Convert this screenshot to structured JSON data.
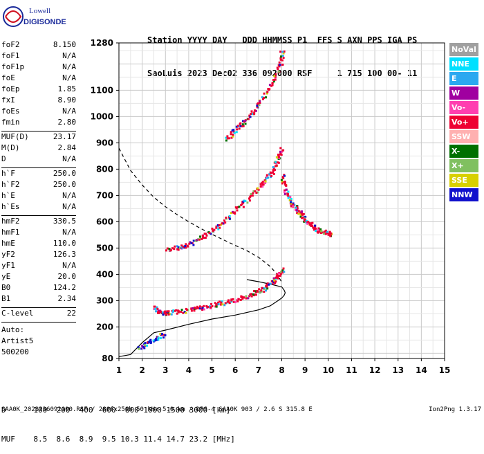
{
  "logo": {
    "line1": "Lowell",
    "line2": "DIGISONDE"
  },
  "header": {
    "labels": [
      "Station",
      "YYYY",
      "DAY",
      "DDD",
      "HHMMSS",
      "P1",
      "FFS",
      "S",
      "AXN",
      "PPS",
      "IGA",
      "PS"
    ],
    "values": [
      "SaoLuis",
      "2023",
      "Dec02",
      "336",
      "092000",
      "RSF",
      "1",
      "715",
      "100",
      "00-",
      "11"
    ]
  },
  "params": [
    {
      "label": "foF2",
      "value": "8.150"
    },
    {
      "label": "foF1",
      "value": "N/A"
    },
    {
      "label": "foF1p",
      "value": "N/A"
    },
    {
      "label": "foE",
      "value": "N/A"
    },
    {
      "label": "foEp",
      "value": "1.85"
    },
    {
      "label": "fxI",
      "value": "8.90"
    },
    {
      "label": "foEs",
      "value": "N/A"
    },
    {
      "label": "fmin",
      "value": "2.80"
    },
    {
      "label": "MUF(D)",
      "value": "23.17"
    },
    {
      "label": "M(D)",
      "value": "2.84"
    },
    {
      "label": "D",
      "value": "N/A"
    },
    {
      "label": "h`F",
      "value": "250.0"
    },
    {
      "label": "h`F2",
      "value": "250.0"
    },
    {
      "label": "h`E",
      "value": "N/A"
    },
    {
      "label": "h`Es",
      "value": "N/A"
    },
    {
      "label": "hmF2",
      "value": "330.5"
    },
    {
      "label": "hmF1",
      "value": "N/A"
    },
    {
      "label": "hmE",
      "value": "110.0"
    },
    {
      "label": "yF2",
      "value": "126.3"
    },
    {
      "label": "yF1",
      "value": "N/A"
    },
    {
      "label": "yE",
      "value": "20.0"
    },
    {
      "label": "B0",
      "value": "124.2"
    },
    {
      "label": "B1",
      "value": "2.34"
    },
    {
      "label": "C-level",
      "value": "22"
    }
  ],
  "auto": {
    "line1": "Auto:",
    "line2": "Artist5",
    "line3": "500200"
  },
  "legend": [
    {
      "label": "NoVal",
      "color": "#a0a0a0"
    },
    {
      "label": "NNE",
      "color": "#00e0ff"
    },
    {
      "label": "E",
      "color": "#2ba8f0"
    },
    {
      "label": "W",
      "color": "#a000a0"
    },
    {
      "label": "Vo-",
      "color": "#ff3fb0"
    },
    {
      "label": "Vo+",
      "color": "#ee0033"
    },
    {
      "label": "SSW",
      "color": "#ffb0b0"
    },
    {
      "label": "X-",
      "color": "#007000"
    },
    {
      "label": "X+",
      "color": "#80c060"
    },
    {
      "label": "SSE",
      "color": "#d8d000"
    },
    {
      "label": "NNW",
      "color": "#1010cc"
    }
  ],
  "chart_data": {
    "type": "scatter",
    "xlim": [
      1,
      15
    ],
    "ylim": [
      80,
      1280
    ],
    "x_ticks": [
      1,
      2,
      3,
      4,
      5,
      6,
      7,
      8,
      9,
      10,
      11,
      12,
      13,
      14,
      15
    ],
    "y_ticks": [
      80,
      200,
      300,
      400,
      500,
      600,
      700,
      800,
      900,
      1000,
      1100,
      1280
    ],
    "grid": true,
    "series": [
      {
        "color": "#000000",
        "style": "solid",
        "x": [
          1.0,
          1.5,
          2.0,
          2.5,
          3.0,
          4.0,
          5.0,
          6.0,
          7.0,
          7.5,
          7.8,
          8.0,
          8.1,
          8.15,
          8.1,
          8.0,
          7.5,
          7.0,
          6.5
        ],
        "y": [
          87,
          95,
          140,
          178,
          188,
          210,
          230,
          245,
          265,
          280,
          298,
          310,
          320,
          330,
          340,
          352,
          363,
          372,
          380
        ]
      },
      {
        "color": "#000000",
        "style": "dashed",
        "x": [
          1.0,
          1.5,
          2.0,
          2.5,
          3.0,
          3.5,
          4.0,
          4.5,
          5.0,
          5.5,
          6.0,
          6.5,
          7.0,
          7.5,
          7.8,
          8.0
        ],
        "y": [
          880,
          795,
          740,
          693,
          657,
          627,
          600,
          575,
          552,
          531,
          510,
          490,
          465,
          430,
          400,
          370
        ]
      },
      {
        "color": "#ee0033",
        "style": "echo",
        "x": [
          2.5,
          2.8,
          3.0,
          3.5,
          4.0,
          4.5,
          5.0,
          5.5,
          6.0,
          6.5,
          7.0,
          7.3,
          7.6,
          7.8,
          8.0
        ],
        "y": [
          282,
          255,
          255,
          260,
          268,
          275,
          285,
          295,
          305,
          320,
          338,
          355,
          375,
          398,
          420
        ]
      },
      {
        "color": "#1010cc",
        "style": "echo",
        "x": [
          1.8,
          2.2,
          2.6,
          2.9
        ],
        "y": [
          120,
          140,
          160,
          175
        ]
      },
      {
        "color": "#ee0033",
        "style": "echo",
        "x": [
          3.0,
          3.5,
          4.0,
          4.5,
          5.0,
          5.5,
          6.0,
          6.5,
          7.0,
          7.3,
          7.6,
          7.8,
          8.0
        ],
        "y": [
          500,
          505,
          515,
          540,
          570,
          605,
          645,
          690,
          730,
          765,
          800,
          840,
          880
        ]
      },
      {
        "color": "#ee0033",
        "style": "echo",
        "x": [
          8.0,
          8.1,
          8.3,
          8.5,
          8.7,
          8.9,
          9.1,
          9.3,
          9.6,
          9.9,
          10.1
        ],
        "y": [
          780,
          730,
          690,
          660,
          640,
          620,
          600,
          585,
          570,
          560,
          555
        ]
      },
      {
        "color": "#ee0033",
        "style": "echo",
        "x": [
          5.6,
          6.0,
          6.4,
          6.8,
          7.2,
          7.6,
          7.9,
          8.0
        ],
        "y": [
          920,
          950,
          985,
          1030,
          1080,
          1140,
          1200,
          1260
        ]
      }
    ]
  },
  "distance_row": {
    "label": "D",
    "values": [
      "100",
      "200",
      "400",
      "600",
      "800",
      "1000",
      "1500",
      "3000"
    ],
    "unit": "[km]"
  },
  "muf_row": {
    "label": "MUF",
    "values": [
      "8.5",
      "8.6",
      "8.9",
      "9.5",
      "10.3",
      "11.4",
      "14.7",
      "23.2"
    ],
    "unit": "[MHz]"
  },
  "footer": {
    "left": "SAA0K_2023336092000.RSF / 280fx256h 50 kHz 5.0 km / DPS-4 SAA0K 903 / 2.6 S 315.8 E",
    "right": "Ion2Png 1.3.17"
  }
}
